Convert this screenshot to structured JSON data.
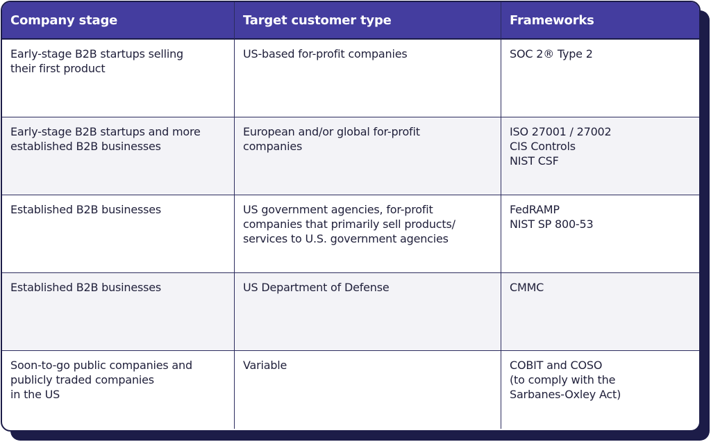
{
  "table": {
    "header": [
      "Company stage",
      "Target customer type",
      "Frameworks"
    ],
    "rows": [
      [
        [
          "Early-stage B2B startups selling",
          "their first product"
        ],
        [
          "US-based for-profit companies"
        ],
        [
          "SOC 2® Type 2"
        ]
      ],
      [
        [
          "Early-stage B2B startups and more",
          "established B2B businesses"
        ],
        [
          "European and/or global for-profit",
          "companies"
        ],
        [
          "ISO 27001 / 27002",
          "CIS Controls",
          "NIST CSF"
        ]
      ],
      [
        [
          "Established B2B businesses"
        ],
        [
          "US government agencies, for-profit",
          "companies that primarily sell products/",
          "services to U.S. government agencies"
        ],
        [
          "FedRAMP",
          "NIST SP 800-53"
        ]
      ],
      [
        [
          "Established B2B businesses"
        ],
        [
          "US Department of Defense"
        ],
        [
          "CMMC"
        ]
      ],
      [
        [
          "Soon-to-go public companies and",
          "publicly traded companies",
          "in the US"
        ],
        [
          "Variable"
        ],
        [
          "COBIT and COSO",
          "(to comply with the",
          "Sarbanes-Oxley Act)"
        ]
      ]
    ]
  }
}
